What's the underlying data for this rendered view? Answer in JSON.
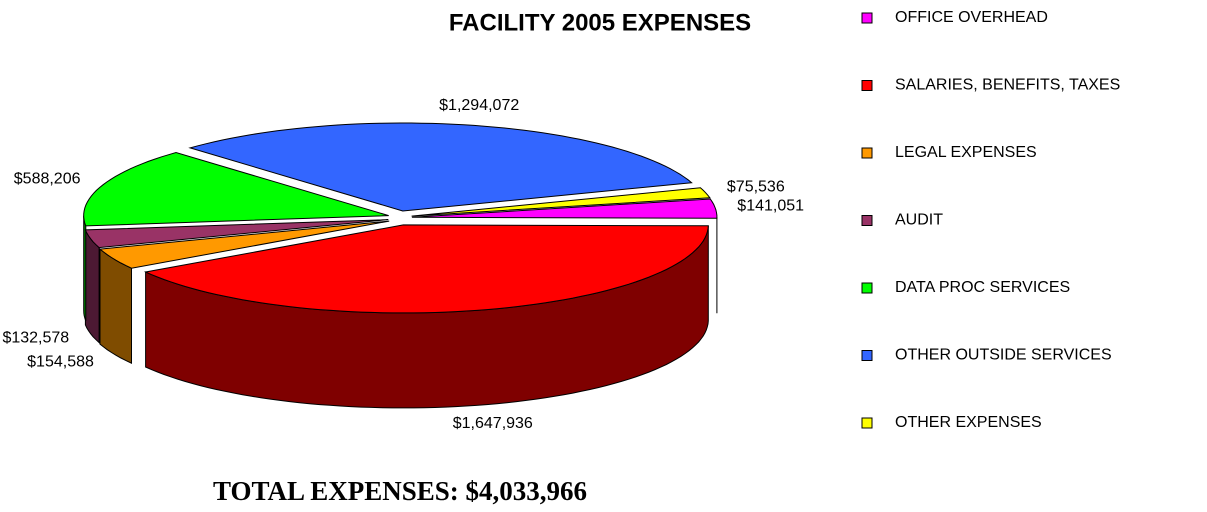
{
  "chart_data": {
    "type": "pie",
    "title": "FACILITY 2005 EXPENSES",
    "annotation": "TOTAL EXPENSES:  $4,033,966",
    "categories": [
      "OFFICE OVERHEAD",
      "SALARIES, BENEFITS, TAXES",
      "LEGAL EXPENSES",
      "AUDIT",
      "DATA PROC SERVICES",
      "OTHER OUTSIDE SERVICES",
      "OTHER EXPENSES"
    ],
    "values": [
      141051,
      1647936,
      154588,
      132578,
      588206,
      1294072,
      75536
    ],
    "value_labels": [
      "$141,051",
      "$1,647,936",
      "$154,588",
      "$132,578",
      "$588,206",
      "$1,294,072",
      "$75,536"
    ],
    "colors": [
      "#ff00ff",
      "#ff0000",
      "#ff9900",
      "#993366",
      "#00ff00",
      "#3366ff",
      "#ffff00"
    ],
    "legend": "right"
  }
}
